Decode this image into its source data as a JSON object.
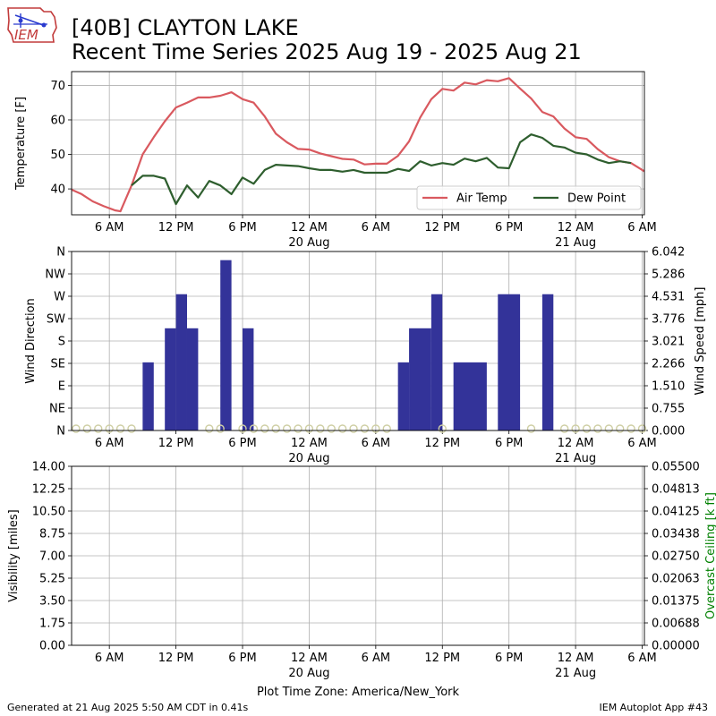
{
  "header": {
    "title_line1": "[40B] CLAYTON LAKE",
    "title_line2": "Recent Time Series 2025 Aug 19 - 2025 Aug 21",
    "logo_text": "IEM"
  },
  "footer": {
    "generated": "Generated at 21 Aug 2025 5:50 AM CDT in 0.41s",
    "app": "IEM Autoplot App #43"
  },
  "chart_data": [
    {
      "type": "line",
      "panel": "temperature",
      "ylabel": "Temperature [F]",
      "x_unit": "hours after 2025-08-19 00:00 America/New_York",
      "xlim": [
        2.6,
        54.2
      ],
      "ylim": [
        32.5,
        74
      ],
      "yticks": [
        40,
        50,
        60,
        70
      ],
      "xticks": [
        {
          "x": 6,
          "label": "6 AM",
          "sub": ""
        },
        {
          "x": 12,
          "label": "12 PM",
          "sub": ""
        },
        {
          "x": 18,
          "label": "6 PM",
          "sub": ""
        },
        {
          "x": 24,
          "label": "12 AM",
          "sub": "20 Aug"
        },
        {
          "x": 30,
          "label": "6 AM",
          "sub": ""
        },
        {
          "x": 36,
          "label": "12 PM",
          "sub": ""
        },
        {
          "x": 42,
          "label": "6 PM",
          "sub": ""
        },
        {
          "x": 48,
          "label": "12 AM",
          "sub": "21 Aug"
        },
        {
          "x": 54,
          "label": "6 AM",
          "sub": ""
        }
      ],
      "grid": true,
      "legend": {
        "position": "lower-right",
        "columns": 2
      },
      "series": [
        {
          "name": "Air Temp",
          "color": "#d9595f",
          "x": [
            2.6,
            3.5,
            4.5,
            5.5,
            6.5,
            7,
            8,
            9,
            10,
            11,
            12,
            13,
            14,
            15,
            16,
            17,
            18,
            19,
            20,
            21,
            22,
            23,
            24,
            25,
            26,
            27,
            28,
            29,
            30,
            31,
            32,
            33,
            34,
            35,
            36,
            37,
            38,
            39,
            40,
            41,
            42,
            43,
            44,
            45,
            46,
            47,
            48,
            49,
            50,
            51,
            52,
            53,
            54.2
          ],
          "y": [
            39.8,
            38.5,
            36.4,
            35.0,
            33.8,
            33.5,
            41.0,
            50.0,
            55.0,
            59.6,
            63.6,
            65.0,
            66.5,
            66.5,
            67.0,
            68.0,
            66.0,
            65.0,
            61.0,
            56.0,
            53.5,
            51.6,
            51.4,
            50.3,
            49.5,
            48.7,
            48.5,
            47.1,
            47.3,
            47.3,
            49.6,
            53.8,
            60.7,
            66.0,
            69.0,
            68.5,
            70.8,
            70.3,
            71.5,
            71.2,
            72.1,
            69.1,
            66.2,
            62.3,
            61.0,
            57.5,
            55.0,
            54.5,
            51.5,
            49.2,
            48.0,
            47.5,
            45.1
          ]
        },
        {
          "name": "Dew Point",
          "color": "#2e5e2e",
          "x": [
            8,
            9,
            10,
            11,
            12,
            13,
            14,
            15,
            16,
            17,
            18,
            19,
            20,
            21,
            22,
            23,
            24,
            25,
            26,
            27,
            28,
            29,
            30,
            31,
            32,
            33,
            34,
            35,
            36,
            37,
            38,
            39,
            40,
            41,
            42,
            43,
            44,
            45,
            46,
            47,
            48,
            49,
            50,
            51,
            52,
            53
          ],
          "y": [
            41.0,
            43.8,
            43.8,
            43.0,
            35.6,
            41.0,
            37.5,
            42.3,
            41.0,
            38.5,
            43.3,
            41.5,
            45.5,
            47.0,
            46.8,
            46.6,
            46.0,
            45.5,
            45.5,
            45.0,
            45.5,
            44.7,
            44.7,
            44.7,
            45.8,
            45.2,
            48.0,
            46.8,
            47.5,
            47.0,
            48.8,
            48.0,
            49.0,
            46.2,
            46.0,
            53.5,
            55.8,
            54.8,
            52.5,
            52.0,
            50.5,
            50.0,
            48.5,
            47.5,
            48.0,
            47.5
          ]
        }
      ]
    },
    {
      "type": "bar",
      "panel": "wind",
      "ylabel_left": "Wind Direction",
      "ylabel_right": "Wind Speed [mph]",
      "direction_ticks": [
        "N",
        "NE",
        "E",
        "SE",
        "S",
        "SW",
        "W",
        "NW",
        "N"
      ],
      "direction_ylim": [
        0,
        360
      ],
      "speed_ticks": [
        "0.000",
        "0.755",
        "1.510",
        "2.266",
        "3.021",
        "3.776",
        "4.531",
        "5.286",
        "6.042"
      ],
      "speed_ylim": [
        0,
        6.042
      ],
      "xlim": [
        2.6,
        54.2
      ],
      "bar_color": "#333399",
      "calm_marker_color": "#cfcfa5",
      "series": [
        {
          "name": "Wind Speed",
          "bars": [
            {
              "x0": 9.0,
              "x1": 10.0,
              "speed": 2.3
            },
            {
              "x0": 11.0,
              "x1": 12.0,
              "speed": 3.45
            },
            {
              "x0": 12.0,
              "x1": 13.0,
              "speed": 4.6
            },
            {
              "x0": 13.0,
              "x1": 14.0,
              "speed": 3.45
            },
            {
              "x0": 16.0,
              "x1": 17.0,
              "speed": 5.75
            },
            {
              "x0": 18.0,
              "x1": 19.0,
              "speed": 3.45
            },
            {
              "x0": 32.0,
              "x1": 33.0,
              "speed": 2.3
            },
            {
              "x0": 33.0,
              "x1": 35.0,
              "speed": 3.45
            },
            {
              "x0": 35.0,
              "x1": 36.0,
              "speed": 4.6
            },
            {
              "x0": 37.0,
              "x1": 40.0,
              "speed": 2.3
            },
            {
              "x0": 41.0,
              "x1": 43.0,
              "speed": 4.6
            },
            {
              "x0": 45.0,
              "x1": 46.0,
              "speed": 4.6
            }
          ]
        },
        {
          "name": "Calm (N)",
          "calm_x": [
            3,
            4,
            5,
            6,
            7,
            8,
            15,
            16,
            18,
            19,
            20,
            21,
            22,
            23,
            24,
            25,
            26,
            27,
            28,
            29,
            30,
            31,
            36,
            44,
            47,
            48,
            49,
            50,
            51,
            52,
            53,
            54
          ]
        }
      ]
    },
    {
      "type": "line",
      "panel": "visibility",
      "ylabel_left": "Visibility [miles]",
      "ylabel_right": "Overcast Ceiling [k ft]",
      "ylabel_right_color": "#008000",
      "left_ticks": [
        "0.00",
        "1.75",
        "3.50",
        "5.25",
        "7.00",
        "8.75",
        "10.50",
        "12.25",
        "14.00"
      ],
      "left_ylim": [
        0,
        14
      ],
      "right_ticks": [
        "0.00000",
        "0.00688",
        "0.01375",
        "0.02063",
        "0.02750",
        "0.03438",
        "0.04125",
        "0.04813",
        "0.05500"
      ],
      "right_ylim": [
        0,
        0.055
      ],
      "xlim": [
        2.6,
        54.2
      ],
      "xlabel": "Plot Time Zone: America/New_York",
      "series": []
    }
  ]
}
